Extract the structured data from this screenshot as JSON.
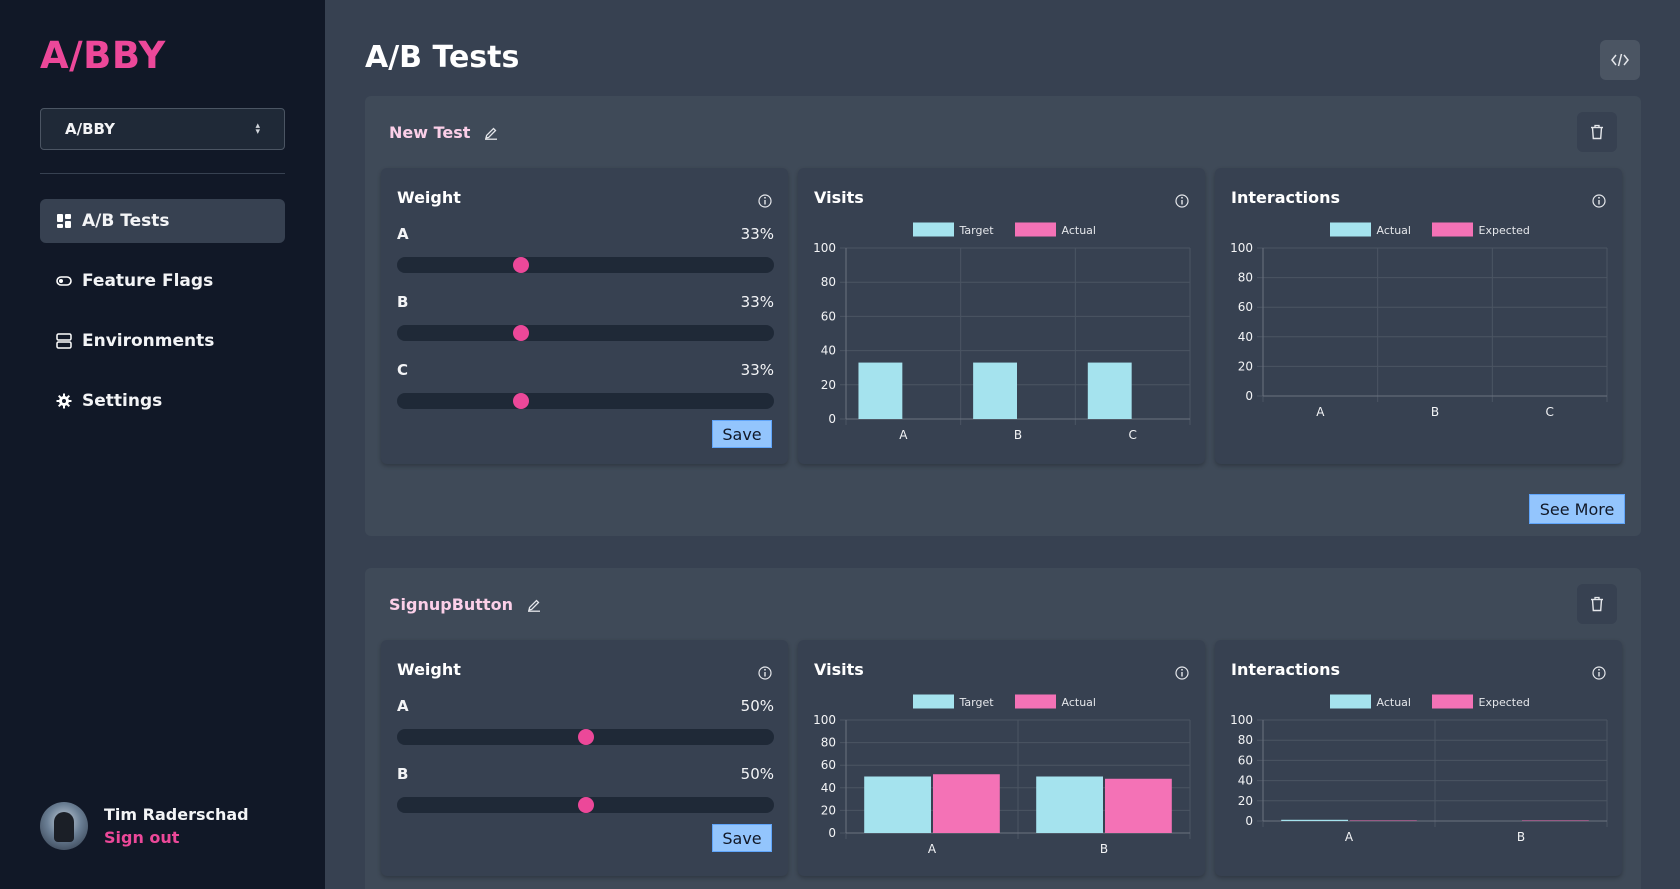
{
  "app": {
    "logo": "A/BBY"
  },
  "sidebar": {
    "project_select": {
      "value": "A/BBY"
    },
    "items": [
      {
        "label": "A/B Tests",
        "icon": "dashboard-icon",
        "active": true
      },
      {
        "label": "Feature Flags",
        "icon": "toggle-icon",
        "active": false
      },
      {
        "label": "Environments",
        "icon": "server-icon",
        "active": false
      },
      {
        "label": "Settings",
        "icon": "gear-icon",
        "active": false
      }
    ],
    "user": {
      "name": "Tim Raderschad",
      "sign_out": "Sign out"
    }
  },
  "header": {
    "title": "A/B Tests"
  },
  "colors": {
    "accent": "#ec4899",
    "target": "#a5e3ee",
    "actual": "#f472b6",
    "button": "#93c5fd",
    "sidebar": "#111827"
  },
  "tests": [
    {
      "name": "New Test",
      "weight": {
        "title": "Weight",
        "variants": [
          {
            "label": "A",
            "percent": "33%",
            "value": 33
          },
          {
            "label": "B",
            "percent": "33%",
            "value": 33
          },
          {
            "label": "C",
            "percent": "33%",
            "value": 33
          }
        ],
        "save_label": "Save"
      },
      "visits": {
        "title": "Visits"
      },
      "interactions": {
        "title": "Interactions"
      },
      "see_more_label": "See More"
    },
    {
      "name": "SignupButton",
      "weight": {
        "title": "Weight",
        "variants": [
          {
            "label": "A",
            "percent": "50%",
            "value": 50
          },
          {
            "label": "B",
            "percent": "50%",
            "value": 50
          }
        ],
        "save_label": "Save"
      },
      "visits": {
        "title": "Visits"
      },
      "interactions": {
        "title": "Interactions"
      }
    }
  ],
  "chart_data": [
    {
      "type": "bar",
      "categories": [
        "A",
        "B",
        "C"
      ],
      "series": [
        {
          "name": "Target",
          "values": [
            33,
            33,
            33
          ]
        },
        {
          "name": "Actual",
          "values": [
            0,
            0,
            0
          ]
        }
      ],
      "ylim": [
        0,
        100
      ],
      "yticks": [
        "0",
        "20",
        "40",
        "60",
        "80",
        "100"
      ],
      "grid": true,
      "legend": "top"
    },
    {
      "type": "bar",
      "categories": [
        "A",
        "B",
        "C"
      ],
      "series": [
        {
          "name": "Actual",
          "values": [
            0,
            0,
            0
          ]
        },
        {
          "name": "Expected",
          "values": [
            0,
            0,
            0
          ]
        }
      ],
      "ylim": [
        0,
        100
      ],
      "yticks": [
        "0",
        "20",
        "40",
        "60",
        "80",
        "100"
      ],
      "grid": true,
      "legend": "top"
    },
    {
      "type": "bar",
      "categories": [
        "A",
        "B"
      ],
      "series": [
        {
          "name": "Target",
          "values": [
            50,
            50
          ]
        },
        {
          "name": "Actual",
          "values": [
            52,
            48
          ]
        }
      ],
      "ylim": [
        0,
        100
      ],
      "yticks": [
        "0",
        "20",
        "40",
        "60",
        "80",
        "100"
      ],
      "grid": true,
      "legend": "top"
    },
    {
      "type": "bar",
      "categories": [
        "A",
        "B"
      ],
      "series": [
        {
          "name": "Actual",
          "values": [
            1.2,
            0
          ]
        },
        {
          "name": "Expected",
          "values": [
            0.5,
            0.5
          ]
        }
      ],
      "ylim": [
        0,
        100
      ],
      "yticks": [
        "0",
        "20",
        "40",
        "60",
        "80",
        "100"
      ],
      "grid": true,
      "legend": "top"
    }
  ]
}
